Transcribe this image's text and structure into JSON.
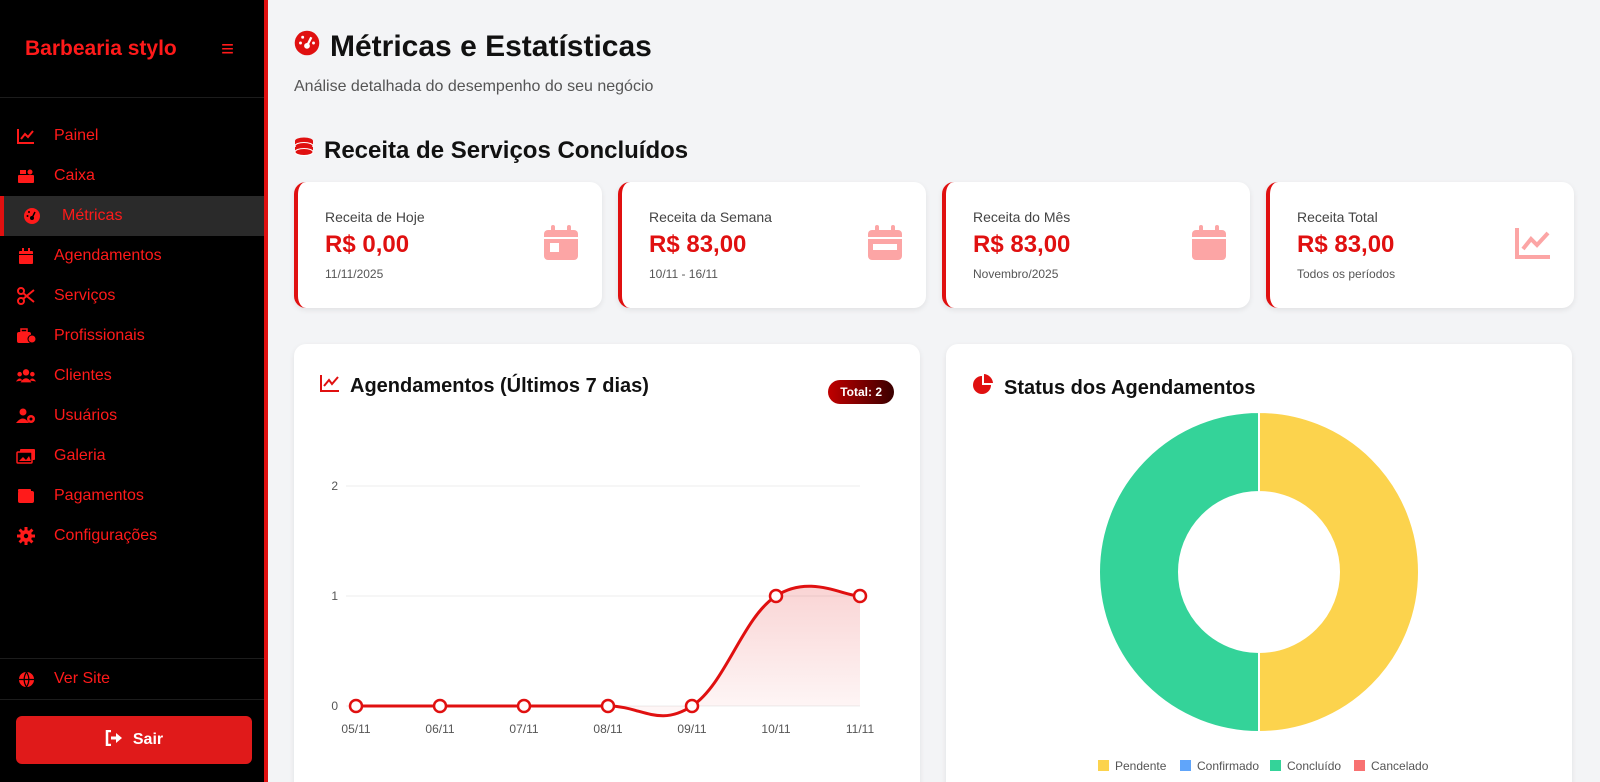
{
  "sidebar": {
    "brand": "Barbearia stylo",
    "items": [
      {
        "label": "Painel",
        "icon": "chart-line-icon"
      },
      {
        "label": "Caixa",
        "icon": "cash-register-icon"
      },
      {
        "label": "Métricas",
        "icon": "gauge-icon",
        "active": true
      },
      {
        "label": "Agendamentos",
        "icon": "calendar-icon"
      },
      {
        "label": "Serviços",
        "icon": "scissors-icon"
      },
      {
        "label": "Profissionais",
        "icon": "user-tie-icon"
      },
      {
        "label": "Clientes",
        "icon": "users-icon"
      },
      {
        "label": "Usuários",
        "icon": "user-gear-icon"
      },
      {
        "label": "Galeria",
        "icon": "images-icon"
      },
      {
        "label": "Pagamentos",
        "icon": "wallet-icon"
      },
      {
        "label": "Configurações",
        "icon": "gear-icon"
      }
    ],
    "ver_site": "Ver Site",
    "logout": "Sair"
  },
  "header": {
    "title": "Métricas e Estatísticas",
    "subtitle": "Análise detalhada do desempenho do seu negócio"
  },
  "revenue_section": {
    "title": "Receita de Serviços Concluídos",
    "cards": [
      {
        "label": "Receita de Hoje",
        "value": "R$ 0,00",
        "sub": "11/11/2025",
        "icon": "calendar-day-icon"
      },
      {
        "label": "Receita da Semana",
        "value": "R$ 83,00",
        "sub": "10/11 - 16/11",
        "icon": "calendar-week-icon"
      },
      {
        "label": "Receita do Mês",
        "value": "R$ 83,00",
        "sub": "Novembro/2025",
        "icon": "calendar-icon"
      },
      {
        "label": "Receita Total",
        "value": "R$ 83,00",
        "sub": "Todos os períodos",
        "icon": "chart-line-icon"
      }
    ]
  },
  "appointments_panel": {
    "title": "Agendamentos (Últimos 7 dias)",
    "badge": "Total: 2"
  },
  "status_panel": {
    "title": "Status dos Agendamentos"
  },
  "colors": {
    "accent": "#e01010",
    "pendente": "#fcd34d",
    "confirmado": "#60a5fa",
    "concluido": "#34d399",
    "cancelado": "#f87171"
  },
  "chart_data": [
    {
      "type": "line",
      "x": [
        "05/11",
        "06/11",
        "07/11",
        "08/11",
        "09/11",
        "10/11",
        "11/11"
      ],
      "series": [
        {
          "values": [
            0,
            0,
            0,
            0,
            0,
            1,
            1
          ]
        }
      ],
      "ylim": [
        0,
        2
      ],
      "yticks": [
        0,
        1,
        2
      ],
      "grid": true
    },
    {
      "type": "pie",
      "categories": [
        "Pendente",
        "Confirmado",
        "Concluído",
        "Cancelado"
      ],
      "values": [
        1,
        0,
        1,
        0
      ],
      "legend": "bottom"
    }
  ]
}
